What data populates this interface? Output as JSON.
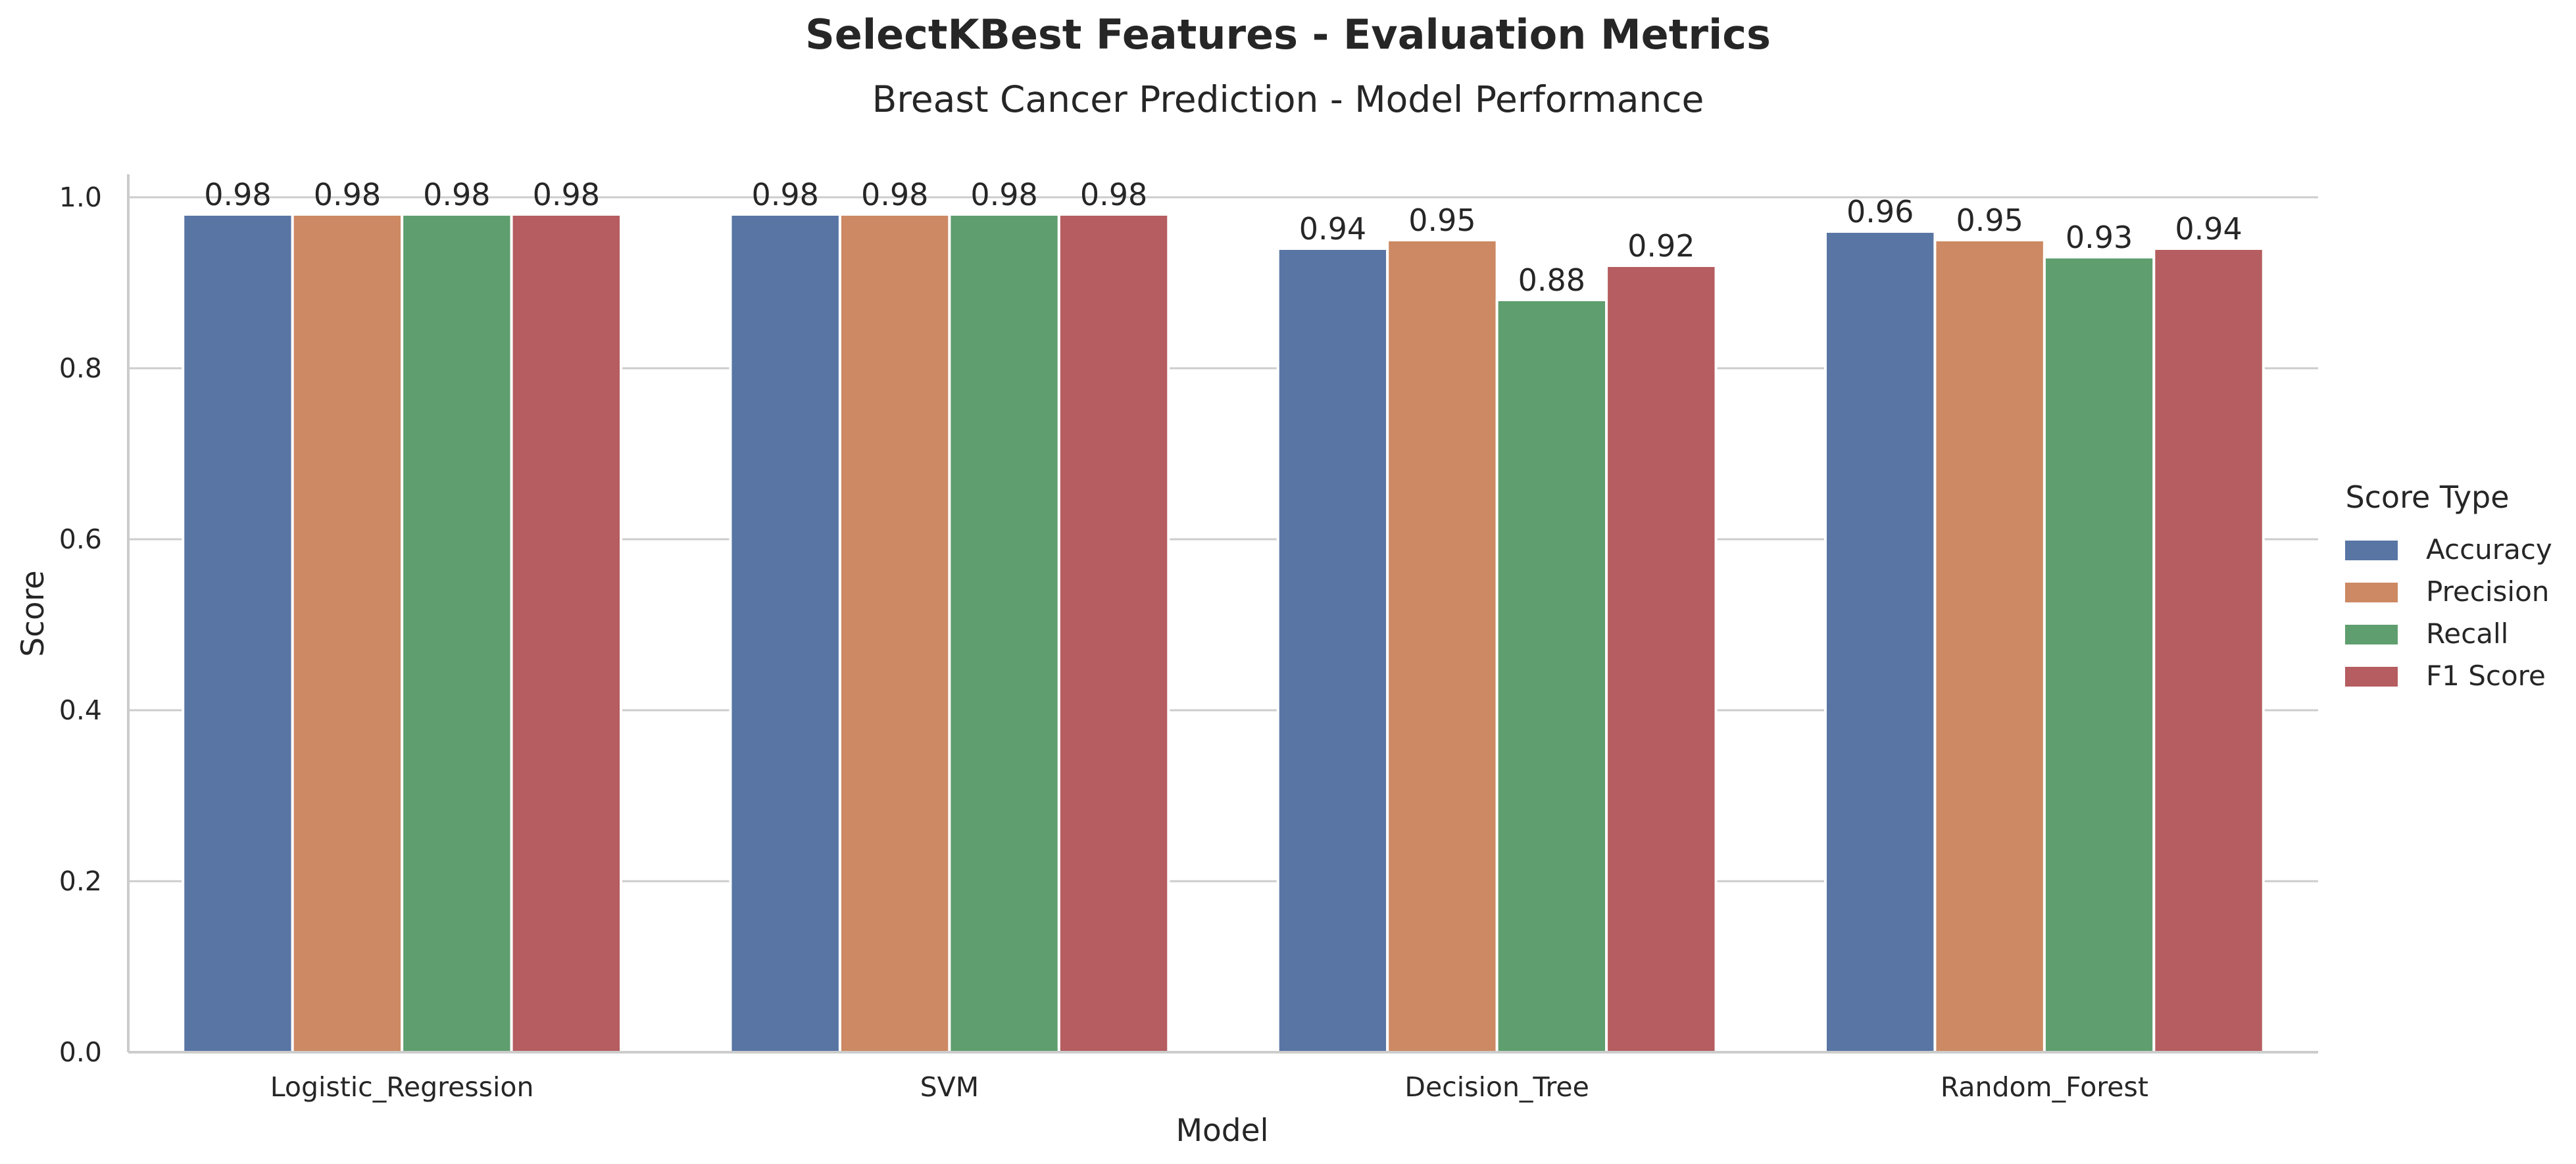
{
  "chart_data": {
    "type": "bar",
    "title": "SelectKBest Features - Evaluation Metrics",
    "subtitle": "Breast Cancer Prediction - Model Performance",
    "xlabel": "Model",
    "ylabel": "Score",
    "ylim": [
      0,
      1.03
    ],
    "yticks": [
      "0.0",
      "0.2",
      "0.4",
      "0.6",
      "0.8",
      "1.0"
    ],
    "grid": "horizontal",
    "legend_title": "Score Type",
    "legend_position": "right",
    "categories": [
      "Logistic_Regression",
      "SVM",
      "Decision_Tree",
      "Random_Forest"
    ],
    "series": [
      {
        "name": "Accuracy",
        "color": "#5875a4",
        "values": [
          0.98,
          0.98,
          0.94,
          0.96
        ],
        "labels": [
          "0.98",
          "0.98",
          "0.94",
          "0.96"
        ]
      },
      {
        "name": "Precision",
        "color": "#cc8963",
        "values": [
          0.98,
          0.98,
          0.95,
          0.95
        ],
        "labels": [
          "0.98",
          "0.98",
          "0.95",
          "0.95"
        ]
      },
      {
        "name": "Recall",
        "color": "#5f9e6e",
        "values": [
          0.98,
          0.98,
          0.88,
          0.93
        ],
        "labels": [
          "0.98",
          "0.98",
          "0.88",
          "0.93"
        ]
      },
      {
        "name": "F1 Score",
        "color": "#b55d60",
        "values": [
          0.98,
          0.98,
          0.92,
          0.94
        ],
        "labels": [
          "0.98",
          "0.98",
          "0.92",
          "0.94"
        ]
      }
    ]
  }
}
